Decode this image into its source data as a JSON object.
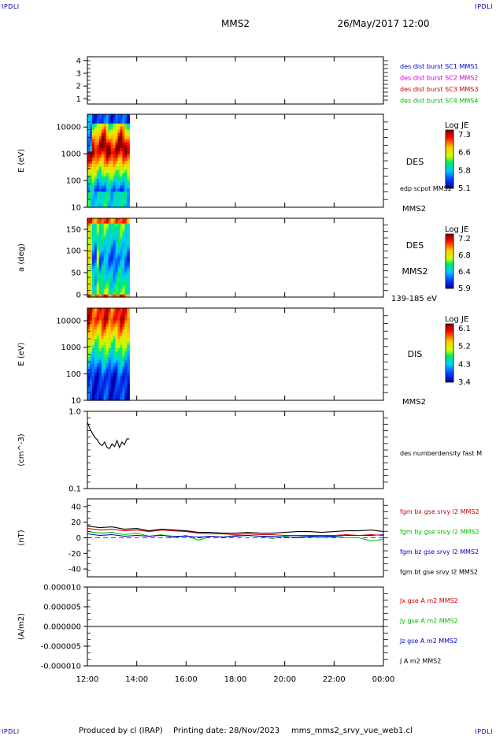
{
  "header": {
    "title": "MMS2",
    "date": "26/May/2017 12:00",
    "corner_label": "IPDLI"
  },
  "footer": {
    "produced": "Produced by cl (IRAP)",
    "printing": "Printing date: 28/Nov/2023",
    "file": "mms_mms2_srvy_vue_web1.cl"
  },
  "time_axis": {
    "ticks": [
      "12:00",
      "14:00",
      "16:00",
      "18:00",
      "20:00",
      "22:00",
      "00:00"
    ],
    "start_hour": 12,
    "end_hour": 24,
    "data_end_hour": 13.7
  },
  "panels": [
    {
      "id": "burst",
      "type": "label-strip",
      "ylabel": "",
      "yticks": [
        "4",
        "3",
        "2",
        "1"
      ],
      "legend": [
        {
          "text": "des dist burst SC1 MMS1",
          "color": "#0000cc"
        },
        {
          "text": "des dist burst SC2 MMS2",
          "color": "#cc00cc"
        },
        {
          "text": "des dist burst SC3 MMS3",
          "color": "#cc0000"
        },
        {
          "text": "des dist burst SC4 MMS4",
          "color": "#00bb00"
        }
      ]
    },
    {
      "id": "des-energy",
      "type": "heatmap",
      "ylabel": "E (eV)",
      "scale": "log",
      "ylim": [
        10,
        30000
      ],
      "yticks": [
        "10000",
        "1000",
        "100",
        "10"
      ],
      "name": "DES",
      "sub": "edp scpot MMS2",
      "foot": "MMS2",
      "colorbar": {
        "title": "Log JE",
        "ticks": [
          "7.3",
          "6.6",
          "5.8",
          "5.1"
        ]
      }
    },
    {
      "id": "des-pitch",
      "type": "heatmap",
      "ylabel": "a (deg)",
      "scale": "linear",
      "ylim": [
        0,
        180
      ],
      "yticks": [
        "150",
        "100",
        "50",
        "0"
      ],
      "name": "DES",
      "sub": "MMS2",
      "foot": "139-185 eV",
      "colorbar": {
        "title": "Log JE",
        "ticks": [
          "7.2",
          "6.8",
          "6.4",
          "5.9"
        ]
      }
    },
    {
      "id": "dis-energy",
      "type": "heatmap",
      "ylabel": "E (eV)",
      "scale": "log",
      "ylim": [
        10,
        30000
      ],
      "yticks": [
        "10000",
        "1000",
        "100",
        "10"
      ],
      "name": "DIS",
      "foot": "MMS2",
      "colorbar": {
        "title": "Log JE",
        "ticks": [
          "6.1",
          "5.2",
          "4.3",
          "3.4"
        ]
      }
    },
    {
      "id": "density",
      "type": "line",
      "ylabel": "(cm^-3)",
      "scale": "log",
      "ylim": [
        0.1,
        1.0
      ],
      "yticks": [
        "1.0",
        "0.1"
      ],
      "legend": [
        {
          "text": "des numberdensity fast M",
          "color": "#000000"
        }
      ]
    },
    {
      "id": "bfield",
      "type": "line",
      "ylabel": "(nT)",
      "scale": "linear",
      "ylim": [
        -50,
        50
      ],
      "yticks": [
        "40",
        "20",
        "0",
        "-20",
        "-40"
      ],
      "legend": [
        {
          "text": "fgm bx gse srvy l2 MMS2",
          "color": "#cc0000"
        },
        {
          "text": "fgm by gse srvy l2 MMS2",
          "color": "#00bb00"
        },
        {
          "text": "fgm bz gse srvy l2 MMS2",
          "color": "#0000cc"
        },
        {
          "text": "fgm bt gse srvy l2 MMS2",
          "color": "#000000"
        }
      ]
    },
    {
      "id": "current",
      "type": "line",
      "ylabel": "(A/m2)",
      "scale": "linear",
      "ylim": [
        -1e-05,
        1e-05
      ],
      "yticks": [
        "0.000010",
        "0.000005",
        "0.000000",
        "-0.000005",
        "-0.000010"
      ],
      "legend": [
        {
          "text": "Jx gse A m2 MMS2",
          "color": "#cc0000"
        },
        {
          "text": "Jy gse A m2 MMS2",
          "color": "#00bb00"
        },
        {
          "text": "Jz gse A m2 MMS2",
          "color": "#0000cc"
        },
        {
          "text": "J A m2 MMS2",
          "color": "#000000"
        }
      ]
    }
  ],
  "chart_data": {
    "type": "line",
    "x_unit": "hour (UT)",
    "density": {
      "x": [
        12.0,
        12.1,
        12.2,
        12.3,
        12.4,
        12.5,
        12.6,
        12.7,
        12.8,
        12.9,
        13.0,
        13.1,
        13.2,
        13.3,
        13.4,
        13.5,
        13.6,
        13.7
      ],
      "y": [
        0.72,
        0.6,
        0.52,
        0.46,
        0.43,
        0.38,
        0.36,
        0.4,
        0.34,
        0.33,
        0.38,
        0.35,
        0.42,
        0.34,
        0.4,
        0.37,
        0.44,
        0.44
      ]
    },
    "bfield": {
      "x": [
        12.0,
        12.5,
        13.0,
        13.5,
        14.0,
        14.5,
        15.0,
        15.5,
        16.0,
        16.5,
        17.0,
        17.5,
        18.0,
        18.5,
        19.0,
        19.5,
        20.0,
        20.5,
        21.0,
        21.5,
        22.0,
        22.5,
        23.0,
        23.5,
        24.0
      ],
      "bx": [
        12,
        10,
        11,
        9,
        10,
        8,
        10,
        9,
        8,
        6,
        5,
        5,
        4,
        5,
        4,
        4,
        3,
        3,
        3,
        3,
        3,
        4,
        3,
        4,
        3
      ],
      "by": [
        8,
        6,
        7,
        4,
        6,
        2,
        4,
        0,
        3,
        -3,
        2,
        1,
        3,
        3,
        2,
        -1,
        2,
        0,
        1,
        0,
        1,
        0,
        0,
        -4,
        -2
      ],
      "bz": [
        5,
        3,
        4,
        2,
        3,
        2,
        3,
        2,
        2,
        1,
        2,
        1,
        2,
        3,
        2,
        2,
        1,
        1,
        2,
        2,
        2,
        3,
        3,
        3,
        4
      ],
      "bt": [
        15,
        13,
        14,
        11,
        12,
        9,
        11,
        10,
        9,
        7,
        7,
        6,
        6,
        7,
        6,
        6,
        7,
        8,
        8,
        7,
        8,
        9,
        9,
        10,
        8
      ]
    },
    "current": {
      "x": [
        12.0,
        24.0
      ],
      "y": [
        0.0,
        0.0
      ]
    }
  }
}
